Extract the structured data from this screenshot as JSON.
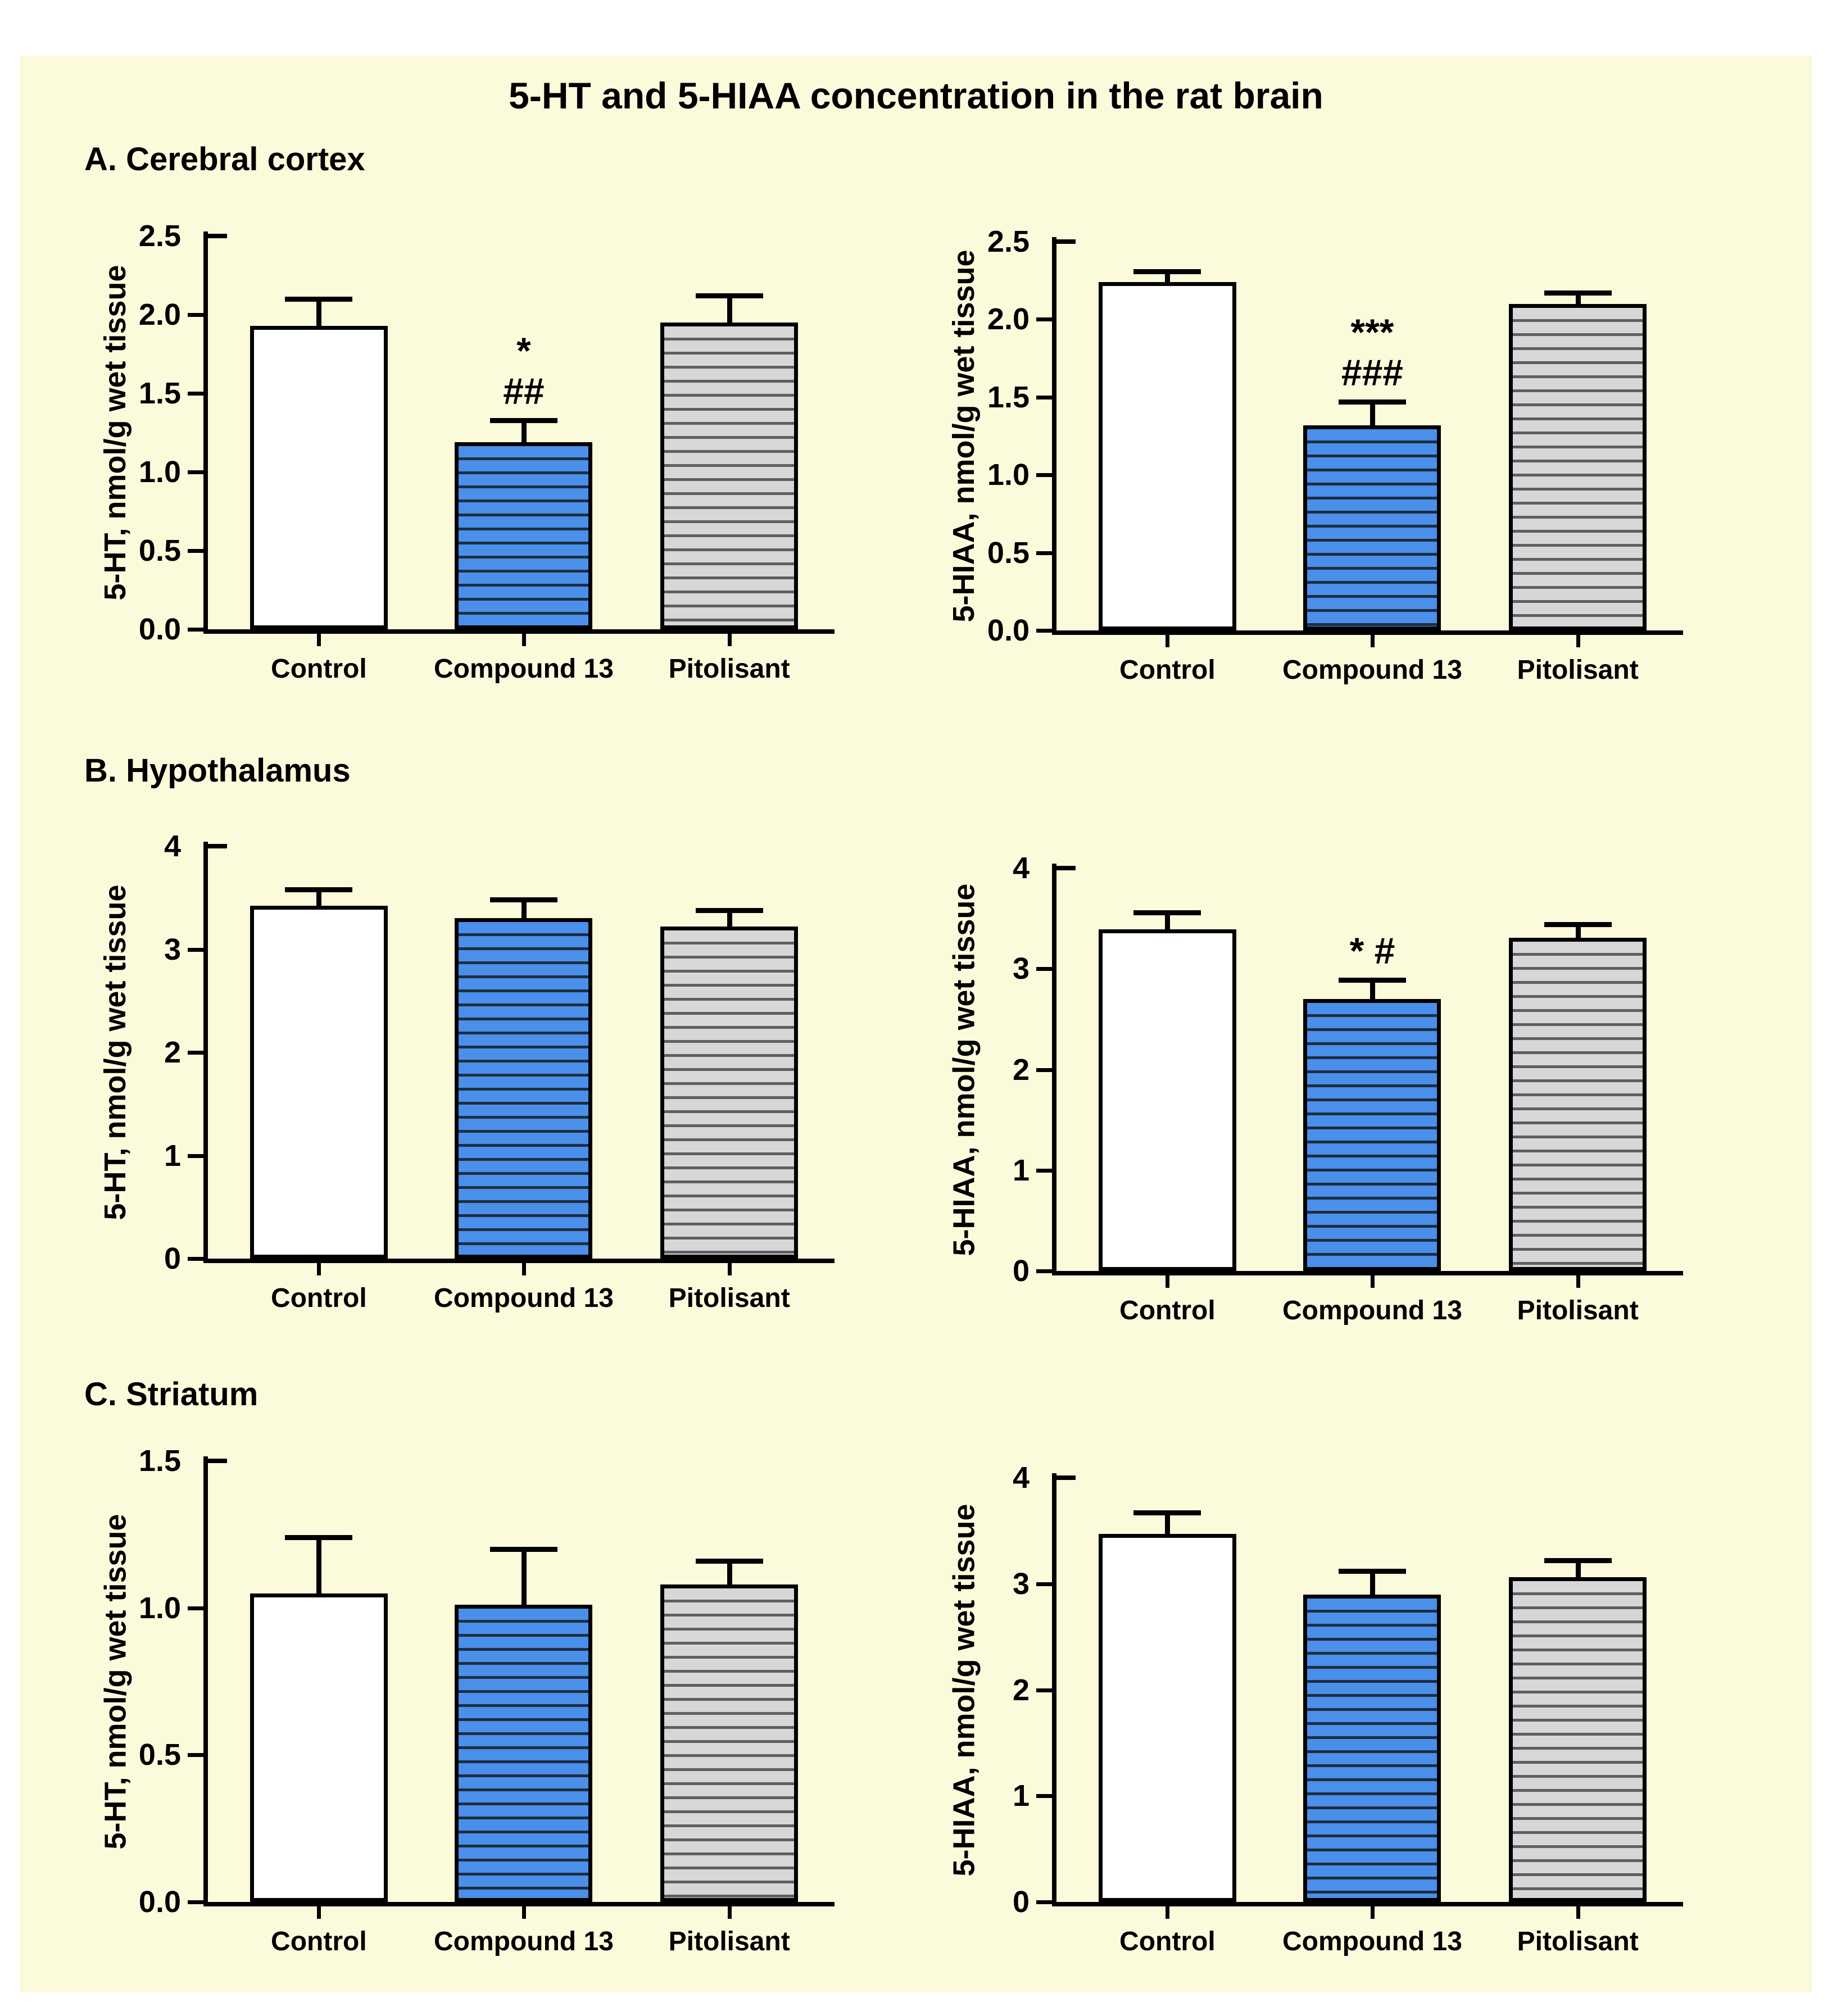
{
  "page": {
    "title": "5-HT and 5-HIAA concentration in the rat brain"
  },
  "sections": [
    {
      "label": "A. Cerebral cortex"
    },
    {
      "label": "B. Hypothalamus"
    },
    {
      "label": "C. Striatum"
    }
  ],
  "colors": {
    "panel_background": "#FBFBDC",
    "control_fill": "#FFFFFF",
    "compound13_blue": "#4A8FE9",
    "compound13_stripe": "#1F2D3D",
    "pitolisant_gray": "#D7D7D7",
    "pitolisant_stripe": "#5F5F5F",
    "bar_border": "#000000",
    "text": "#000000"
  },
  "chart_data": [
    {
      "id": "cortex-5ht",
      "type": "bar",
      "section": "A. Cerebral cortex",
      "ylabel": "5-HT, nmol/g wet tissue",
      "categories": [
        "Control",
        "Compound 13",
        "Pitolisant"
      ],
      "values": [
        1.93,
        1.19,
        1.95
      ],
      "errors": [
        0.17,
        0.14,
        0.17
      ],
      "ylim": [
        0,
        2.5
      ],
      "yticks": [
        "0.0",
        "0.5",
        "1.0",
        "1.5",
        "2.0",
        "2.5"
      ],
      "bar_styles": [
        "control",
        "compound13",
        "pitolisant"
      ],
      "annotations": [
        {
          "bar": 1,
          "lines": [
            "*",
            "##"
          ]
        }
      ],
      "grid": false,
      "legend": "none"
    },
    {
      "id": "cortex-5hiaa",
      "type": "bar",
      "section": "A. Cerebral cortex",
      "ylabel": "5-HIAA, nmol/g wet tissue",
      "categories": [
        "Control",
        "Compound 13",
        "Pitolisant"
      ],
      "values": [
        2.24,
        1.32,
        2.1
      ],
      "errors": [
        0.07,
        0.15,
        0.07
      ],
      "ylim": [
        0,
        2.5
      ],
      "yticks": [
        "0.0",
        "0.5",
        "1.0",
        "1.5",
        "2.0",
        "2.5"
      ],
      "bar_styles": [
        "control",
        "compound13",
        "pitolisant"
      ],
      "annotations": [
        {
          "bar": 1,
          "lines": [
            "***",
            "###"
          ]
        }
      ],
      "grid": false,
      "legend": "none"
    },
    {
      "id": "hypothalamus-5ht",
      "type": "bar",
      "section": "B. Hypothalamus",
      "ylabel": "5-HT, nmol/g wet tissue",
      "categories": [
        "Control",
        "Compound 13",
        "Pitolisant"
      ],
      "values": [
        3.42,
        3.3,
        3.22
      ],
      "errors": [
        0.16,
        0.18,
        0.16
      ],
      "ylim": [
        0,
        4
      ],
      "yticks": [
        "0",
        "1",
        "2",
        "3",
        "4"
      ],
      "bar_styles": [
        "control",
        "compound13",
        "pitolisant"
      ],
      "annotations": [],
      "grid": false,
      "legend": "none"
    },
    {
      "id": "hypothalamus-5hiaa",
      "type": "bar",
      "section": "B. Hypothalamus",
      "ylabel": "5-HIAA, nmol/g wet tissue",
      "categories": [
        "Control",
        "Compound 13",
        "Pitolisant"
      ],
      "values": [
        3.39,
        2.7,
        3.31
      ],
      "errors": [
        0.17,
        0.19,
        0.13
      ],
      "ylim": [
        0,
        4
      ],
      "yticks": [
        "0",
        "1",
        "2",
        "3",
        "4"
      ],
      "bar_styles": [
        "control",
        "compound13",
        "pitolisant"
      ],
      "annotations": [
        {
          "bar": 1,
          "lines": [
            "* #"
          ]
        }
      ],
      "grid": false,
      "legend": "none"
    },
    {
      "id": "striatum-5ht",
      "type": "bar",
      "section": "C. Striatum",
      "ylabel": "5-HT, nmol/g wet tissue",
      "categories": [
        "Control",
        "Compound 13",
        "Pitolisant"
      ],
      "values": [
        1.05,
        1.01,
        1.08
      ],
      "errors": [
        0.19,
        0.19,
        0.08
      ],
      "ylim": [
        0,
        1.5
      ],
      "yticks": [
        "0.0",
        "0.5",
        "1.0",
        "1.5"
      ],
      "bar_styles": [
        "control",
        "compound13",
        "pitolisant"
      ],
      "annotations": [],
      "grid": false,
      "legend": "none"
    },
    {
      "id": "striatum-5hiaa",
      "type": "bar",
      "section": "C. Striatum",
      "ylabel": "5-HIAA, nmol/g wet tissue",
      "categories": [
        "Control",
        "Compound 13",
        "Pitolisant"
      ],
      "values": [
        3.47,
        2.9,
        3.06
      ],
      "errors": [
        0.2,
        0.22,
        0.16
      ],
      "ylim": [
        0,
        4
      ],
      "yticks": [
        "0",
        "1",
        "2",
        "3",
        "4"
      ],
      "bar_styles": [
        "control",
        "compound13",
        "pitolisant"
      ],
      "annotations": [],
      "grid": false,
      "legend": "none"
    }
  ]
}
